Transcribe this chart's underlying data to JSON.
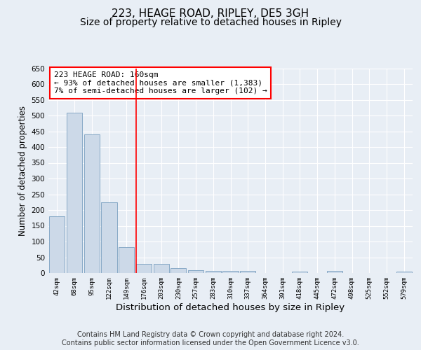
{
  "title": "223, HEAGE ROAD, RIPLEY, DE5 3GH",
  "subtitle": "Size of property relative to detached houses in Ripley",
  "xlabel": "Distribution of detached houses by size in Ripley",
  "ylabel": "Number of detached properties",
  "categories": [
    "42sqm",
    "68sqm",
    "95sqm",
    "122sqm",
    "149sqm",
    "176sqm",
    "203sqm",
    "230sqm",
    "257sqm",
    "283sqm",
    "310sqm",
    "337sqm",
    "364sqm",
    "391sqm",
    "418sqm",
    "445sqm",
    "472sqm",
    "498sqm",
    "525sqm",
    "552sqm",
    "579sqm"
  ],
  "values": [
    181,
    508,
    441,
    225,
    83,
    30,
    28,
    15,
    8,
    7,
    6,
    7,
    0,
    0,
    5,
    0,
    6,
    0,
    0,
    0,
    5
  ],
  "bar_color": "#ccd9e8",
  "bar_edge_color": "#7aa0c0",
  "red_line_x": 4.55,
  "annotation_text": "223 HEAGE ROAD: 160sqm\n← 93% of detached houses are smaller (1,383)\n7% of semi-detached houses are larger (102) →",
  "annotation_box_color": "white",
  "annotation_box_edge_color": "red",
  "ylim": [
    0,
    650
  ],
  "yticks": [
    0,
    50,
    100,
    150,
    200,
    250,
    300,
    350,
    400,
    450,
    500,
    550,
    600,
    650
  ],
  "footer_text": "Contains HM Land Registry data © Crown copyright and database right 2024.\nContains public sector information licensed under the Open Government Licence v3.0.",
  "bg_color": "#e8eef5",
  "plot_bg_color": "#e8eef5",
  "grid_color": "white",
  "title_fontsize": 11,
  "subtitle_fontsize": 10,
  "xlabel_fontsize": 9.5,
  "ylabel_fontsize": 8.5,
  "annotation_fontsize": 8,
  "footer_fontsize": 7
}
